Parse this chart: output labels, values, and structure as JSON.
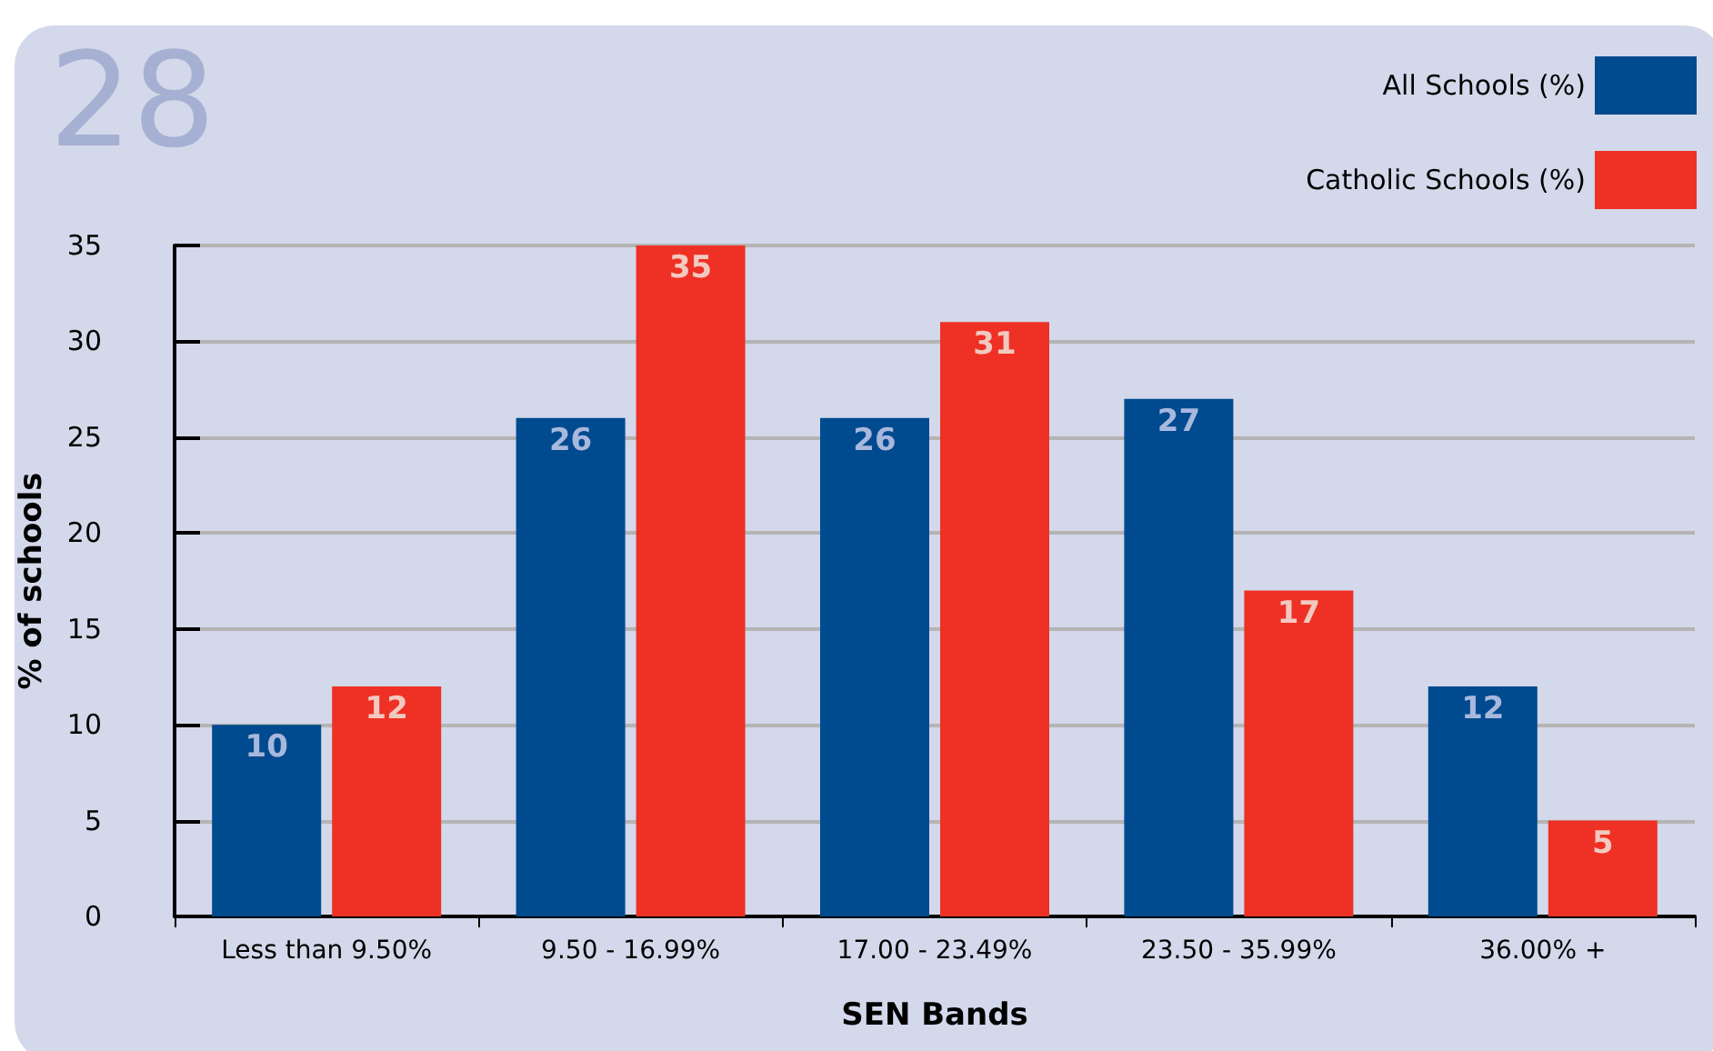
{
  "chart_data": {
    "type": "bar",
    "title": "28",
    "xlabel": "SEN Bands",
    "ylabel": "% of schools",
    "categories": [
      "Less than 9.50%",
      "9.50 - 16.99%",
      "17.00 - 23.49%",
      "23.50 - 35.99%",
      "36.00% +"
    ],
    "series": [
      {
        "name": "All Schools (%)",
        "color": "#004a8f",
        "values": [
          10,
          26,
          26,
          27,
          12
        ]
      },
      {
        "name": "Catholic Schools (%)",
        "color": "#ee3124",
        "values": [
          12,
          35,
          31,
          17,
          5
        ]
      }
    ],
    "ylim": [
      0,
      35
    ],
    "yticks": [
      0,
      5,
      10,
      15,
      20,
      25,
      30,
      35
    ],
    "grid": "y",
    "legend": "top right",
    "data_labels": true
  }
}
